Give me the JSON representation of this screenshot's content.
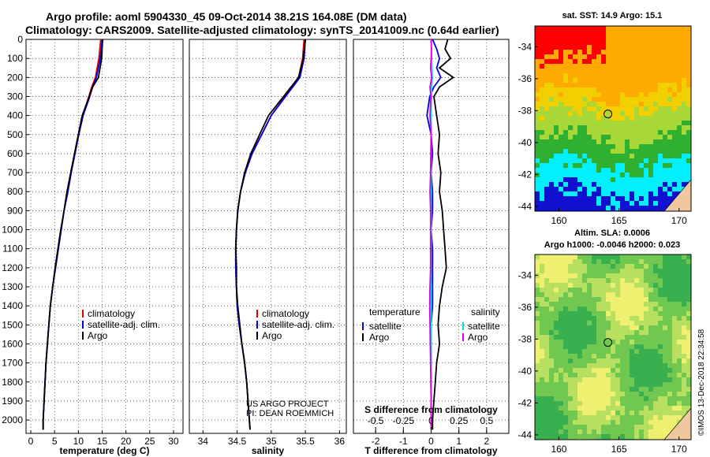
{
  "header": {
    "title_line1": "Argo profile: aoml 5904330_45 09-Oct-2014 38.21S 164.08E (DM data)",
    "title_line2": "Climatology: CARS2009. Satellite-adjusted climatology: synTS_20141009.nc (0.64d earlier)"
  },
  "chart_data": [
    {
      "type": "line",
      "id": "temperature",
      "xlabel": "temperature (deg C)",
      "ylabel": "",
      "xlim": [
        -1,
        32
      ],
      "ylim": [
        0,
        2070
      ],
      "y_reversed": true,
      "x_ticks": [
        0,
        5,
        10,
        15,
        20,
        25,
        30
      ],
      "y_ticks": [
        0,
        100,
        200,
        300,
        400,
        500,
        600,
        700,
        800,
        900,
        1000,
        1100,
        1200,
        1300,
        1400,
        1500,
        1600,
        1700,
        1800,
        1900,
        2000
      ],
      "depth": [
        0,
        100,
        200,
        250,
        300,
        400,
        500,
        600,
        700,
        800,
        900,
        1000,
        1100,
        1200,
        1300,
        1400,
        1500,
        1600,
        1700,
        1800,
        1900,
        2000,
        2050
      ],
      "series": [
        {
          "name": "climatology",
          "color": "#e00000",
          "values": [
            14.7,
            14.3,
            13.6,
            12.8,
            12.2,
            10.9,
            10.0,
            9.2,
            8.4,
            7.7,
            7.0,
            6.4,
            5.8,
            5.2,
            4.6,
            4.1,
            3.8,
            3.5,
            3.2,
            3.0,
            2.8,
            2.6,
            2.6
          ]
        },
        {
          "name": "satellite-adj. clim.",
          "color": "#0000e0",
          "values": [
            15.0,
            14.6,
            13.8,
            13.0,
            12.4,
            11.0,
            10.1,
            9.3,
            8.5,
            7.8,
            7.0,
            6.4,
            5.8,
            5.2,
            4.6,
            4.1,
            3.8,
            3.5,
            3.2,
            3.0,
            2.8,
            2.6,
            2.6
          ]
        },
        {
          "name": "Argo",
          "color": "#000000",
          "values": [
            15.1,
            14.9,
            14.2,
            13.0,
            12.3,
            10.8,
            10.0,
            9.2,
            8.4,
            7.6,
            7.0,
            6.3,
            5.7,
            5.1,
            4.6,
            4.1,
            3.8,
            3.5,
            3.2,
            3.0,
            2.8,
            2.6,
            2.6
          ]
        }
      ],
      "legend": [
        "climatology",
        "satellite-adj. clim.",
        "Argo"
      ],
      "legend_position": "lower-right"
    },
    {
      "type": "line",
      "id": "salinity",
      "xlabel": "salinity",
      "ylabel": "",
      "xlim": [
        33.8,
        36.1
      ],
      "ylim": [
        0,
        2070
      ],
      "y_reversed": true,
      "x_ticks": [
        34,
        34.5,
        35,
        35.5,
        36
      ],
      "depth": [
        0,
        100,
        200,
        300,
        400,
        500,
        600,
        700,
        800,
        900,
        1000,
        1100,
        1200,
        1300,
        1400,
        1500,
        1600,
        1700,
        1800,
        1900,
        2000,
        2050
      ],
      "series": [
        {
          "name": "climatology",
          "color": "#e00000",
          "values": [
            35.48,
            35.46,
            35.4,
            35.2,
            35.0,
            34.86,
            34.72,
            34.62,
            34.55,
            34.51,
            34.49,
            34.48,
            34.48,
            34.49,
            34.5,
            34.53,
            34.57,
            34.61,
            34.64,
            34.66,
            34.68,
            34.69
          ]
        },
        {
          "name": "satellite-adj. clim.",
          "color": "#0000e0",
          "values": [
            35.5,
            35.48,
            35.42,
            35.21,
            35.0,
            34.86,
            34.72,
            34.62,
            34.55,
            34.51,
            34.49,
            34.48,
            34.48,
            34.49,
            34.5,
            34.53,
            34.57,
            34.61,
            34.64,
            34.66,
            34.68,
            34.69
          ]
        },
        {
          "name": "Argo",
          "color": "#000000",
          "values": [
            35.5,
            35.47,
            35.4,
            35.18,
            34.96,
            34.83,
            34.7,
            34.61,
            34.55,
            34.51,
            34.49,
            34.48,
            34.49,
            34.49,
            34.51,
            34.54,
            34.57,
            34.61,
            34.64,
            34.66,
            34.68,
            34.69
          ]
        }
      ],
      "legend": [
        "climatology",
        "satellite-adj. clim.",
        "Argo"
      ],
      "legend_position": "lower-right",
      "annotation": [
        "US ARGO PROJECT",
        "PI: DEAN ROEMMICH"
      ]
    },
    {
      "type": "line",
      "id": "difference",
      "xlabel": "T difference from climatology",
      "x2label": "S difference from climatology",
      "xlim": [
        -2.8,
        2.8
      ],
      "ylim": [
        0,
        2070
      ],
      "y_reversed": true,
      "x_ticks": [
        -2,
        -1,
        0,
        1,
        2
      ],
      "x2_ticks": [
        -0.5,
        -0.25,
        0,
        0.25,
        0.5
      ],
      "depth": [
        0,
        50,
        100,
        150,
        200,
        250,
        300,
        400,
        500,
        600,
        700,
        800,
        900,
        1000,
        1100,
        1200,
        1300,
        1400,
        1500,
        1600,
        1700,
        1800,
        1900,
        2000,
        2050
      ],
      "series": [
        {
          "name": "temperature satellite",
          "color": "#0000e0",
          "values": [
            0.05,
            0.2,
            0.3,
            0.2,
            0.35,
            0.1,
            -0.05,
            -0.15,
            0.0,
            0.05,
            0.0,
            0.05,
            0.05,
            0.0,
            0.05,
            0.05,
            0.05,
            0.05,
            0.0,
            0.0,
            0.0,
            0.0,
            0.0,
            0.0,
            0.0
          ]
        },
        {
          "name": "temperature Argo",
          "color": "#000000",
          "values": [
            0.6,
            0.5,
            0.7,
            0.3,
            0.8,
            0.3,
            0.1,
            0.2,
            0.3,
            0.25,
            0.35,
            0.3,
            0.4,
            0.45,
            0.5,
            0.55,
            0.4,
            0.3,
            0.25,
            0.3,
            0.2,
            0.15,
            0.1,
            0.05,
            0.05
          ]
        },
        {
          "name": "salinity satellite",
          "color": "#00e0e0",
          "values": [
            0.0,
            0.01,
            0.02,
            0.03,
            0.04,
            0.02,
            0.01,
            0.0,
            0.0,
            0.0,
            0.0,
            0.0,
            0.0,
            0.0,
            0.0,
            0.0,
            0.0,
            0.0,
            0.0,
            0.0,
            0.0,
            0.0,
            0.0,
            0.0,
            0.0
          ]
        },
        {
          "name": "salinity Argo",
          "color": "#e000e0",
          "values": [
            0.0,
            0.01,
            0.0,
            -0.02,
            0.02,
            -0.04,
            -0.01,
            -0.04,
            0.0,
            -0.01,
            -0.02,
            -0.04,
            -0.02,
            -0.02,
            -0.02,
            -0.02,
            -0.04,
            -0.05,
            -0.04,
            -0.03,
            -0.02,
            -0.01,
            0.0,
            0.0,
            0.0
          ]
        }
      ],
      "legend_left_title": "temperature",
      "legend_right_title": "salinity",
      "legend_items": [
        "satellite",
        "Argo"
      ],
      "legend_position": "lower-center"
    },
    {
      "type": "heatmap",
      "id": "sst_map",
      "title": "sat. SST: 14.9 Argo: 15.1",
      "xlim": [
        158,
        171
      ],
      "ylim": [
        -44.3,
        -32.7
      ],
      "x_ticks": [
        160,
        165,
        170
      ],
      "y_ticks": [
        -34,
        -36,
        -38,
        -40,
        -42,
        -44
      ],
      "marker": {
        "lon": 164.08,
        "lat": -38.21
      }
    },
    {
      "type": "heatmap",
      "id": "sla_map",
      "title": "Altim. SLA: 0.0006",
      "subtitle": "Argo h1000: -0.0046 h2000: 0.023",
      "xlim": [
        158,
        171
      ],
      "ylim": [
        -44.3,
        -32.7
      ],
      "x_ticks": [
        160,
        165,
        170
      ],
      "y_ticks": [
        -34,
        -36,
        -38,
        -40,
        -42,
        -44
      ],
      "marker": {
        "lon": 164.08,
        "lat": -38.21
      }
    }
  ],
  "footer": {
    "stamp": "©IMOS 13-Dec-2018 22:34:58"
  }
}
